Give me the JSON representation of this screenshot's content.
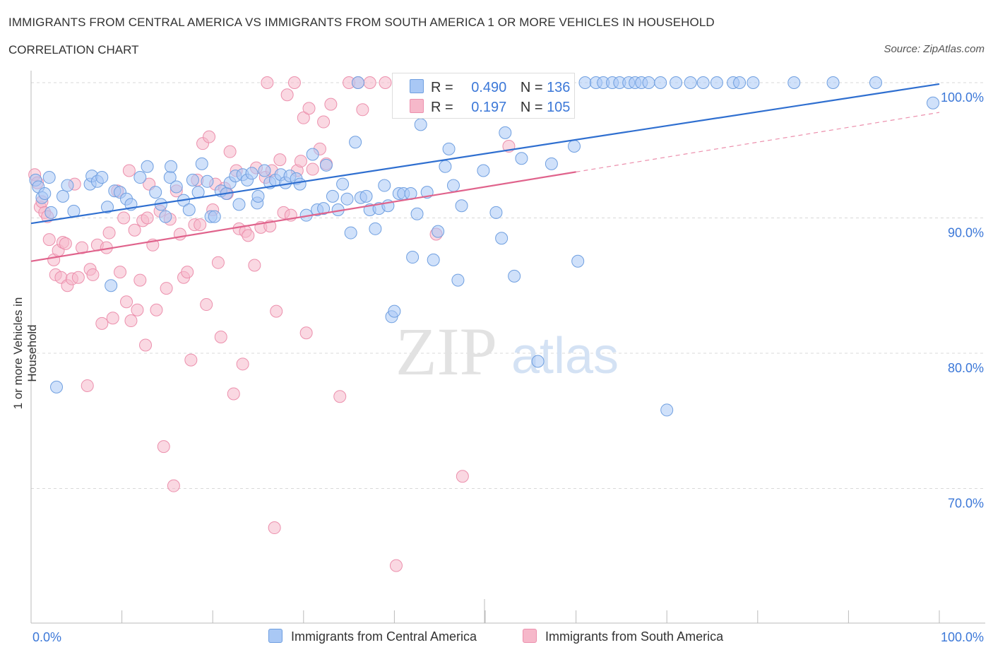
{
  "header": {
    "title": "IMMIGRANTS FROM CENTRAL AMERICA VS IMMIGRANTS FROM SOUTH AMERICA 1 OR MORE VEHICLES IN HOUSEHOLD",
    "subtitle": "CORRELATION CHART",
    "source": "Source: ZipAtlas.com"
  },
  "legend": {
    "r_label": "R =",
    "n_label": "N =",
    "series1": {
      "r": "0.490",
      "n": "136"
    },
    "series2": {
      "r": "0.197",
      "n": "105"
    }
  },
  "watermark": {
    "zip": "ZIP",
    "atlas": "atlas"
  },
  "colors": {
    "blue_fill": "#a9c8f5",
    "blue_stroke": "#6f9fe0",
    "blue_line": "#2f6fd0",
    "pink_fill": "#f6b8ca",
    "pink_stroke": "#ec90ad",
    "pink_line": "#e0638c",
    "axis_label": "#3c78d8",
    "grid": "#d8d8d8"
  },
  "chart_data": {
    "type": "scatter",
    "xlabel": "",
    "ylabel": "1 or more Vehicles in Household",
    "xlim": [
      0,
      100
    ],
    "ylim": [
      60,
      100.5
    ],
    "x_tick_labels": [
      "0.0%",
      "100.0%"
    ],
    "y_ticks": [
      70,
      80,
      90,
      100
    ],
    "y_tick_labels": [
      "70.0%",
      "80.0%",
      "90.0%",
      "100.0%"
    ],
    "grid": true,
    "legend_position": "bottom",
    "series": [
      {
        "name": "Immigrants from Central America",
        "color": "#a9c8f5",
        "trend": {
          "x": [
            0,
            100
          ],
          "y": [
            89.6,
            99.9
          ]
        },
        "points": [
          [
            0.5,
            92.8
          ],
          [
            0.8,
            92.3
          ],
          [
            1.2,
            91.5
          ],
          [
            1.5,
            91.8
          ],
          [
            2.0,
            93.0
          ],
          [
            2.2,
            90.4
          ],
          [
            2.8,
            77.5
          ],
          [
            3.5,
            91.6
          ],
          [
            4.0,
            92.4
          ],
          [
            4.7,
            90.5
          ],
          [
            6.5,
            92.5
          ],
          [
            6.7,
            93.1
          ],
          [
            7.3,
            92.7
          ],
          [
            7.8,
            93.0
          ],
          [
            8.4,
            90.8
          ],
          [
            8.8,
            85.0
          ],
          [
            9.2,
            92.0
          ],
          [
            9.8,
            91.9
          ],
          [
            10.5,
            91.4
          ],
          [
            11.0,
            91.0
          ],
          [
            12.0,
            93.0
          ],
          [
            12.8,
            93.8
          ],
          [
            13.7,
            91.9
          ],
          [
            14.3,
            91.0
          ],
          [
            14.8,
            90.1
          ],
          [
            15.3,
            93.0
          ],
          [
            15.4,
            93.8
          ],
          [
            16.0,
            92.3
          ],
          [
            16.8,
            91.3
          ],
          [
            17.4,
            90.6
          ],
          [
            17.8,
            92.8
          ],
          [
            18.4,
            91.9
          ],
          [
            18.8,
            94.0
          ],
          [
            19.4,
            92.7
          ],
          [
            19.8,
            90.1
          ],
          [
            20.2,
            90.1
          ],
          [
            20.9,
            92.0
          ],
          [
            21.5,
            91.8
          ],
          [
            21.9,
            92.6
          ],
          [
            22.5,
            93.1
          ],
          [
            22.9,
            91.0
          ],
          [
            23.3,
            93.2
          ],
          [
            23.8,
            92.8
          ],
          [
            24.3,
            93.3
          ],
          [
            24.9,
            91.1
          ],
          [
            25.0,
            91.6
          ],
          [
            25.7,
            93.5
          ],
          [
            26.3,
            92.6
          ],
          [
            26.9,
            92.8
          ],
          [
            27.5,
            93.2
          ],
          [
            28.0,
            92.6
          ],
          [
            28.5,
            93.1
          ],
          [
            29.2,
            92.9
          ],
          [
            29.6,
            92.5
          ],
          [
            30.3,
            90.2
          ],
          [
            31.0,
            94.7
          ],
          [
            31.5,
            90.6
          ],
          [
            32.2,
            90.7
          ],
          [
            32.5,
            93.9
          ],
          [
            33.2,
            91.6
          ],
          [
            33.8,
            90.6
          ],
          [
            34.3,
            92.5
          ],
          [
            34.8,
            91.4
          ],
          [
            35.2,
            88.9
          ],
          [
            35.7,
            95.6
          ],
          [
            36.3,
            91.5
          ],
          [
            36.9,
            91.6
          ],
          [
            37.3,
            90.6
          ],
          [
            37.9,
            89.2
          ],
          [
            38.3,
            90.7
          ],
          [
            38.9,
            92.4
          ],
          [
            39.3,
            90.9
          ],
          [
            39.7,
            82.7
          ],
          [
            40.0,
            83.1
          ],
          [
            40.5,
            91.8
          ],
          [
            41.0,
            91.8
          ],
          [
            41.5,
            98.0
          ],
          [
            41.8,
            91.8
          ],
          [
            42.0,
            87.1
          ],
          [
            42.5,
            90.3
          ],
          [
            42.9,
            96.9
          ],
          [
            43.6,
            91.9
          ],
          [
            44.3,
            86.9
          ],
          [
            44.8,
            89.0
          ],
          [
            45.6,
            93.8
          ],
          [
            46.0,
            95.1
          ],
          [
            46.5,
            92.4
          ],
          [
            47.0,
            85.4
          ],
          [
            47.4,
            90.9
          ],
          [
            48.0,
            100.0
          ],
          [
            48.5,
            100.0
          ],
          [
            49.2,
            100.0
          ],
          [
            49.8,
            93.5
          ],
          [
            50.3,
            100.0
          ],
          [
            50.9,
            100.0
          ],
          [
            51.2,
            90.4
          ],
          [
            51.8,
            88.5
          ],
          [
            52.2,
            96.3
          ],
          [
            52.8,
            100.0
          ],
          [
            53.2,
            85.7
          ],
          [
            53.6,
            100.0
          ],
          [
            54.0,
            94.4
          ],
          [
            55.0,
            100.0
          ],
          [
            55.8,
            79.4
          ],
          [
            56.2,
            100.0
          ],
          [
            56.8,
            100.0
          ],
          [
            57.3,
            94.0
          ],
          [
            58.0,
            100.0
          ],
          [
            59.0,
            100.0
          ],
          [
            59.8,
            95.3
          ],
          [
            60.2,
            86.8
          ],
          [
            61.0,
            100.0
          ],
          [
            62.2,
            100.0
          ],
          [
            63.0,
            100.0
          ],
          [
            64.0,
            100.0
          ],
          [
            64.8,
            100.0
          ],
          [
            65.8,
            100.0
          ],
          [
            66.5,
            100.0
          ],
          [
            67.2,
            100.0
          ],
          [
            68.0,
            100.0
          ],
          [
            69.3,
            100.0
          ],
          [
            70.0,
            75.8
          ],
          [
            71.0,
            100.0
          ],
          [
            72.6,
            100.0
          ],
          [
            74.0,
            100.0
          ],
          [
            75.5,
            100.0
          ],
          [
            77.3,
            100.0
          ],
          [
            79.5,
            100.0
          ],
          [
            84.0,
            100.0
          ],
          [
            88.3,
            100.0
          ],
          [
            93.0,
            100.0
          ],
          [
            99.3,
            98.5
          ],
          [
            36.0,
            100.0
          ],
          [
            40.5,
            100.0
          ],
          [
            78.0,
            100.0
          ],
          [
            45.0,
            100.0
          ]
        ]
      },
      {
        "name": "Immigrants from South America",
        "color": "#f6b8ca",
        "trend": {
          "x": [
            0,
            60
          ],
          "y": [
            86.8,
            93.4
          ],
          "dashed_to": {
            "x": 100,
            "y": 97.8
          }
        },
        "points": [
          [
            0.4,
            93.2
          ],
          [
            0.7,
            92.6
          ],
          [
            1.0,
            90.8
          ],
          [
            1.2,
            91.2
          ],
          [
            1.5,
            90.4
          ],
          [
            1.8,
            90.1
          ],
          [
            2.0,
            88.4
          ],
          [
            2.5,
            86.9
          ],
          [
            2.7,
            85.8
          ],
          [
            3.0,
            87.6
          ],
          [
            3.3,
            85.6
          ],
          [
            3.5,
            88.2
          ],
          [
            3.8,
            88.1
          ],
          [
            4.0,
            85.0
          ],
          [
            4.5,
            85.5
          ],
          [
            4.8,
            92.5
          ],
          [
            5.2,
            85.6
          ],
          [
            5.6,
            87.8
          ],
          [
            6.2,
            77.6
          ],
          [
            6.5,
            86.2
          ],
          [
            6.8,
            85.8
          ],
          [
            7.3,
            88.0
          ],
          [
            7.8,
            82.2
          ],
          [
            8.3,
            87.8
          ],
          [
            8.6,
            88.9
          ],
          [
            9.0,
            82.6
          ],
          [
            9.5,
            92.0
          ],
          [
            9.8,
            86.0
          ],
          [
            10.2,
            90.0
          ],
          [
            10.5,
            83.8
          ],
          [
            10.8,
            93.5
          ],
          [
            11.0,
            82.4
          ],
          [
            11.4,
            89.1
          ],
          [
            11.7,
            83.2
          ],
          [
            12.0,
            85.4
          ],
          [
            12.3,
            89.8
          ],
          [
            12.6,
            80.6
          ],
          [
            13.0,
            92.5
          ],
          [
            13.4,
            88.0
          ],
          [
            13.8,
            83.2
          ],
          [
            14.2,
            90.5
          ],
          [
            14.6,
            73.1
          ],
          [
            14.9,
            84.8
          ],
          [
            15.3,
            89.9
          ],
          [
            15.7,
            70.2
          ],
          [
            16.0,
            92.0
          ],
          [
            16.4,
            88.8
          ],
          [
            16.8,
            85.6
          ],
          [
            17.2,
            86.0
          ],
          [
            17.6,
            79.5
          ],
          [
            18.0,
            89.5
          ],
          [
            18.3,
            92.8
          ],
          [
            18.6,
            89.5
          ],
          [
            18.9,
            95.5
          ],
          [
            19.3,
            83.6
          ],
          [
            19.6,
            96.0
          ],
          [
            20.0,
            90.6
          ],
          [
            20.3,
            92.5
          ],
          [
            20.6,
            86.7
          ],
          [
            20.9,
            81.2
          ],
          [
            21.3,
            92.2
          ],
          [
            21.6,
            91.8
          ],
          [
            21.9,
            94.9
          ],
          [
            22.3,
            77.0
          ],
          [
            22.6,
            93.5
          ],
          [
            22.9,
            89.2
          ],
          [
            23.3,
            79.2
          ],
          [
            23.6,
            89.0
          ],
          [
            23.9,
            88.7
          ],
          [
            24.6,
            86.5
          ],
          [
            24.8,
            93.7
          ],
          [
            25.3,
            89.3
          ],
          [
            25.8,
            93.0
          ],
          [
            26.0,
            100.0
          ],
          [
            26.3,
            89.4
          ],
          [
            26.5,
            93.5
          ],
          [
            26.8,
            67.1
          ],
          [
            27.0,
            83.1
          ],
          [
            27.4,
            94.3
          ],
          [
            27.8,
            90.4
          ],
          [
            28.2,
            99.1
          ],
          [
            28.6,
            90.2
          ],
          [
            29.0,
            100.0
          ],
          [
            29.3,
            93.5
          ],
          [
            29.7,
            94.2
          ],
          [
            30.0,
            97.4
          ],
          [
            30.3,
            81.5
          ],
          [
            30.6,
            98.1
          ],
          [
            31.0,
            93.6
          ],
          [
            31.8,
            95.1
          ],
          [
            32.2,
            97.1
          ],
          [
            32.5,
            94.0
          ],
          [
            33.0,
            98.4
          ],
          [
            34.0,
            76.8
          ],
          [
            35.0,
            100.0
          ],
          [
            36.0,
            100.0
          ],
          [
            37.3,
            100.0
          ],
          [
            39.0,
            100.0
          ],
          [
            40.2,
            64.3
          ],
          [
            44.0,
            100.0
          ],
          [
            44.6,
            88.8
          ],
          [
            47.5,
            70.9
          ],
          [
            52.6,
            95.3
          ],
          [
            36.5,
            98.0
          ],
          [
            12.8,
            90.0
          ]
        ]
      }
    ]
  },
  "bottom_legend": {
    "series1": "Immigrants from Central America",
    "series2": "Immigrants from South America"
  }
}
